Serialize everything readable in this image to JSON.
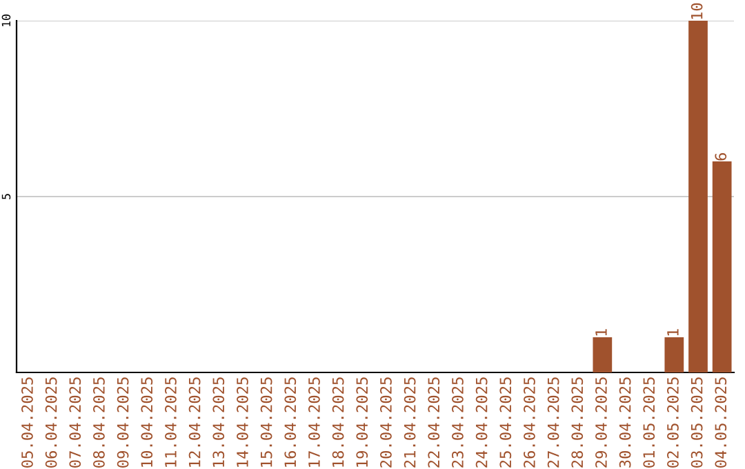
{
  "chart_data": {
    "type": "bar",
    "categories": [
      "05.04.2025",
      "06.04.2025",
      "07.04.2025",
      "08.04.2025",
      "09.04.2025",
      "10.04.2025",
      "11.04.2025",
      "12.04.2025",
      "13.04.2025",
      "14.04.2025",
      "15.04.2025",
      "16.04.2025",
      "17.04.2025",
      "18.04.2025",
      "19.04.2025",
      "20.04.2025",
      "21.04.2025",
      "22.04.2025",
      "23.04.2025",
      "24.04.2025",
      "25.04.2025",
      "26.04.2025",
      "27.04.2025",
      "28.04.2025",
      "29.04.2025",
      "30.04.2025",
      "01.05.2025",
      "02.05.2025",
      "03.05.2025",
      "04.05.2025"
    ],
    "values": [
      0,
      0,
      0,
      0,
      0,
      0,
      0,
      0,
      0,
      0,
      0,
      0,
      0,
      0,
      0,
      0,
      0,
      0,
      0,
      0,
      0,
      0,
      0,
      0,
      1,
      0,
      0,
      1,
      10,
      6
    ],
    "value_labels": [
      null,
      null,
      null,
      null,
      null,
      null,
      null,
      null,
      null,
      null,
      null,
      null,
      null,
      null,
      null,
      null,
      null,
      null,
      null,
      null,
      null,
      null,
      null,
      null,
      "1",
      null,
      null,
      "1",
      "10",
      "6"
    ],
    "color": "#a0522d",
    "ylim": [
      0,
      10
    ],
    "yticks": [
      5,
      10
    ],
    "grid": "y"
  }
}
